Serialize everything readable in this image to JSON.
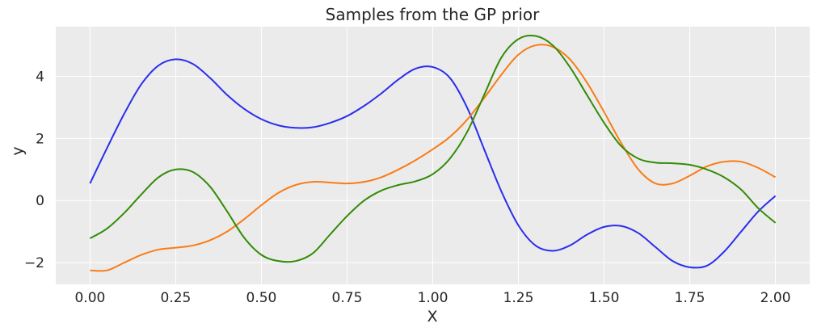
{
  "chart_data": {
    "type": "line",
    "title": "Samples from the GP prior",
    "xlabel": "X",
    "ylabel": "y",
    "xlim": [
      -0.1,
      2.1
    ],
    "ylim": [
      -2.7,
      5.6
    ],
    "xticks": [
      0.0,
      0.25,
      0.5,
      0.75,
      1.0,
      1.25,
      1.5,
      1.75,
      2.0
    ],
    "xtick_labels": [
      "0.00",
      "0.25",
      "0.50",
      "0.75",
      "1.00",
      "1.25",
      "1.50",
      "1.75",
      "2.00"
    ],
    "yticks": [
      -2,
      0,
      2,
      4
    ],
    "ytick_labels": [
      "−2",
      "0",
      "2",
      "4"
    ],
    "grid": true,
    "background": "#ebebeb",
    "series": [
      {
        "color": "#2a2eec",
        "x": [
          0.0,
          0.05,
          0.1,
          0.15,
          0.2,
          0.25,
          0.3,
          0.35,
          0.4,
          0.45,
          0.5,
          0.55,
          0.6,
          0.65,
          0.7,
          0.75,
          0.8,
          0.85,
          0.9,
          0.95,
          1.0,
          1.05,
          1.1,
          1.15,
          1.2,
          1.25,
          1.3,
          1.35,
          1.4,
          1.45,
          1.5,
          1.55,
          1.6,
          1.65,
          1.7,
          1.75,
          1.8,
          1.85,
          1.9,
          1.95,
          2.0
        ],
        "y": [
          0.55,
          1.7,
          2.8,
          3.75,
          4.35,
          4.55,
          4.4,
          3.95,
          3.4,
          2.95,
          2.62,
          2.42,
          2.34,
          2.36,
          2.5,
          2.72,
          3.05,
          3.45,
          3.9,
          4.25,
          4.3,
          3.95,
          3.0,
          1.65,
          0.3,
          -0.8,
          -1.45,
          -1.62,
          -1.45,
          -1.1,
          -0.85,
          -0.82,
          -1.05,
          -1.5,
          -1.95,
          -2.15,
          -2.1,
          -1.65,
          -1.0,
          -0.35,
          0.15
        ]
      },
      {
        "color": "#fa7c17",
        "x": [
          0.0,
          0.05,
          0.1,
          0.15,
          0.2,
          0.25,
          0.3,
          0.35,
          0.4,
          0.45,
          0.5,
          0.55,
          0.6,
          0.65,
          0.7,
          0.75,
          0.8,
          0.85,
          0.9,
          0.95,
          1.0,
          1.05,
          1.1,
          1.15,
          1.2,
          1.25,
          1.3,
          1.35,
          1.4,
          1.45,
          1.5,
          1.55,
          1.6,
          1.65,
          1.7,
          1.75,
          1.8,
          1.85,
          1.9,
          1.95,
          2.0
        ],
        "y": [
          -2.25,
          -2.25,
          -2.0,
          -1.75,
          -1.58,
          -1.52,
          -1.45,
          -1.28,
          -1.0,
          -0.6,
          -0.15,
          0.25,
          0.5,
          0.6,
          0.58,
          0.55,
          0.6,
          0.75,
          1.0,
          1.3,
          1.65,
          2.05,
          2.6,
          3.3,
          4.05,
          4.7,
          5.0,
          4.95,
          4.55,
          3.8,
          2.85,
          1.85,
          1.0,
          0.55,
          0.55,
          0.8,
          1.1,
          1.25,
          1.25,
          1.05,
          0.75
        ]
      },
      {
        "color": "#328c06",
        "x": [
          0.0,
          0.05,
          0.1,
          0.15,
          0.2,
          0.25,
          0.3,
          0.35,
          0.4,
          0.45,
          0.5,
          0.55,
          0.6,
          0.65,
          0.7,
          0.75,
          0.8,
          0.85,
          0.9,
          0.95,
          1.0,
          1.05,
          1.1,
          1.15,
          1.2,
          1.25,
          1.3,
          1.35,
          1.4,
          1.45,
          1.5,
          1.55,
          1.6,
          1.65,
          1.7,
          1.75,
          1.8,
          1.85,
          1.9,
          1.95,
          2.0
        ],
        "y": [
          -1.22,
          -0.9,
          -0.4,
          0.2,
          0.75,
          1.0,
          0.92,
          0.45,
          -0.35,
          -1.2,
          -1.75,
          -1.95,
          -1.95,
          -1.7,
          -1.1,
          -0.5,
          0.0,
          0.32,
          0.5,
          0.62,
          0.85,
          1.35,
          2.2,
          3.4,
          4.6,
          5.2,
          5.3,
          5.0,
          4.3,
          3.4,
          2.5,
          1.75,
          1.35,
          1.22,
          1.2,
          1.15,
          1.0,
          0.75,
          0.35,
          -0.25,
          -0.72
        ]
      }
    ]
  }
}
